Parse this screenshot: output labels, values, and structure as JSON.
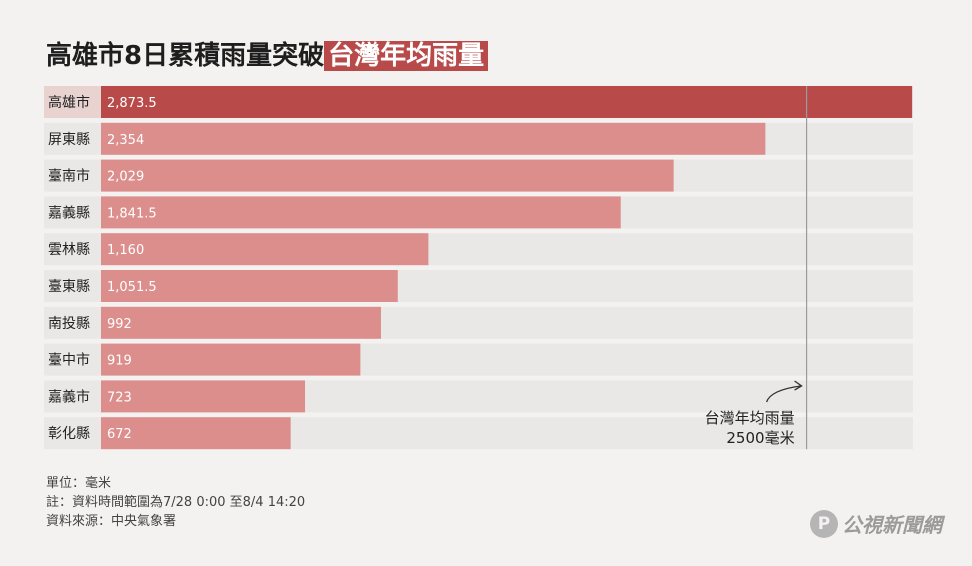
{
  "title": {
    "main": "高雄市8日累積雨量突破",
    "highlight": "台灣年均雨量"
  },
  "chart_data": {
    "type": "bar",
    "orientation": "horizontal",
    "categories": [
      "高雄市",
      "屏東縣",
      "臺南市",
      "嘉義縣",
      "雲林縣",
      "臺東縣",
      "南投縣",
      "臺中市",
      "嘉義市",
      "彰化縣"
    ],
    "values": [
      2873.5,
      2354,
      2029,
      1841.5,
      1160,
      1051.5,
      992,
      919,
      723,
      672
    ],
    "value_labels": [
      "2,873.5",
      "2,354",
      "2,029",
      "1,841.5",
      "1,160",
      "1,051.5",
      "992",
      "919",
      "723",
      "672"
    ],
    "xlim": [
      0,
      2873.5
    ],
    "grid": false,
    "reference_line": {
      "value": 2500,
      "label_line1": "台灣年均雨量",
      "label_line2": "2500毫米"
    },
    "colors": {
      "highlight_bar": "#b84a4a",
      "bar": "#dc8e8c",
      "highlight_row_bg": "#e8d3d1",
      "row_bg": "#eae8e7",
      "reference_line": "#9a9a9a"
    }
  },
  "footer": {
    "unit": "單位：毫米",
    "note": "註：資料時間範圍為7/28 0:00 至8/4 14:20",
    "source": "資料來源：中央氣象署"
  },
  "logo": {
    "mark": "P",
    "text": "公視新聞網"
  }
}
